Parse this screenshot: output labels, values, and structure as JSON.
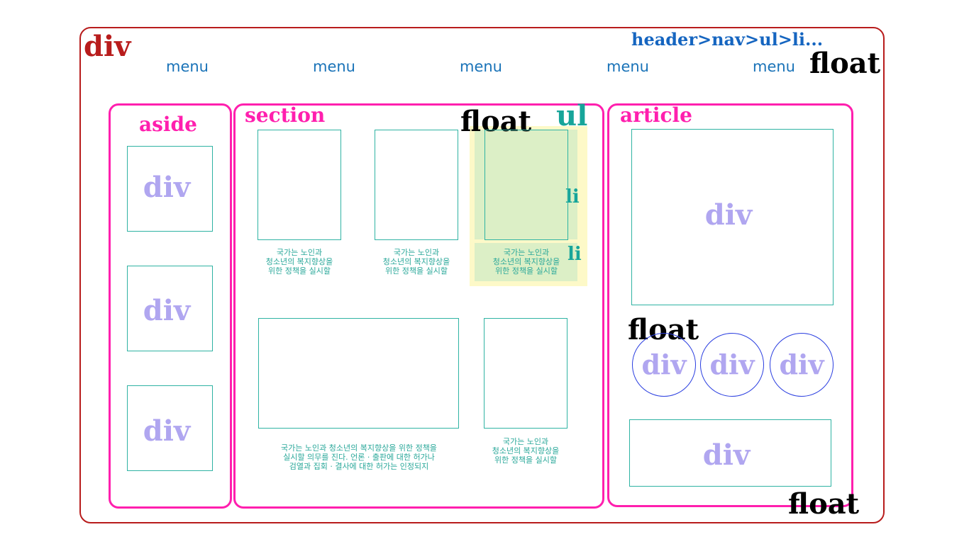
{
  "labels": {
    "div_red": "div",
    "nav": "header>nav>ul>li...",
    "float_top": "float",
    "float_section": "float",
    "float_article": "float",
    "float_bottom": "float",
    "aside": "aside",
    "section": "section",
    "article": "article",
    "ul": "ul",
    "li_1": "li",
    "li_2": "li"
  },
  "menu": [
    "menu",
    "menu",
    "menu",
    "menu",
    "menu"
  ],
  "aside_divs": [
    "div",
    "div",
    "div"
  ],
  "article_divs": {
    "main": "div",
    "circles": [
      "div",
      "div",
      "div"
    ],
    "bottom": "div"
  },
  "captions": {
    "item1": "국가는 노인과\n청소년의 복지향상을\n위한 정책을 실시할",
    "item2": "국가는 노인과\n청소년의 복지향상을\n위한 정책을 실시할",
    "item3": "국가는 노인과\n청소년의 복지향상을\n위한 정책을 실시할",
    "wide": "국가는 노인과 청소년의 복지향상을 위한 정책을\n실시할 의무를 진다. 언론 · 출판에 대한 허가나\n검열과 집회 · 결사에 대한 허가는 인정되지",
    "item5": "국가는 노인과\n청소년의 복지향상을\n위한 정책을 실시할"
  },
  "colors": {
    "outer_border": "#b81c1c",
    "pink": "#ff1fae",
    "teal": "#2fb3a3",
    "lavender": "#b0a6f0",
    "nav_blue": "#1565c0",
    "highlight_yellow": "#fdf9c8",
    "highlight_green": "#dcefc6"
  }
}
